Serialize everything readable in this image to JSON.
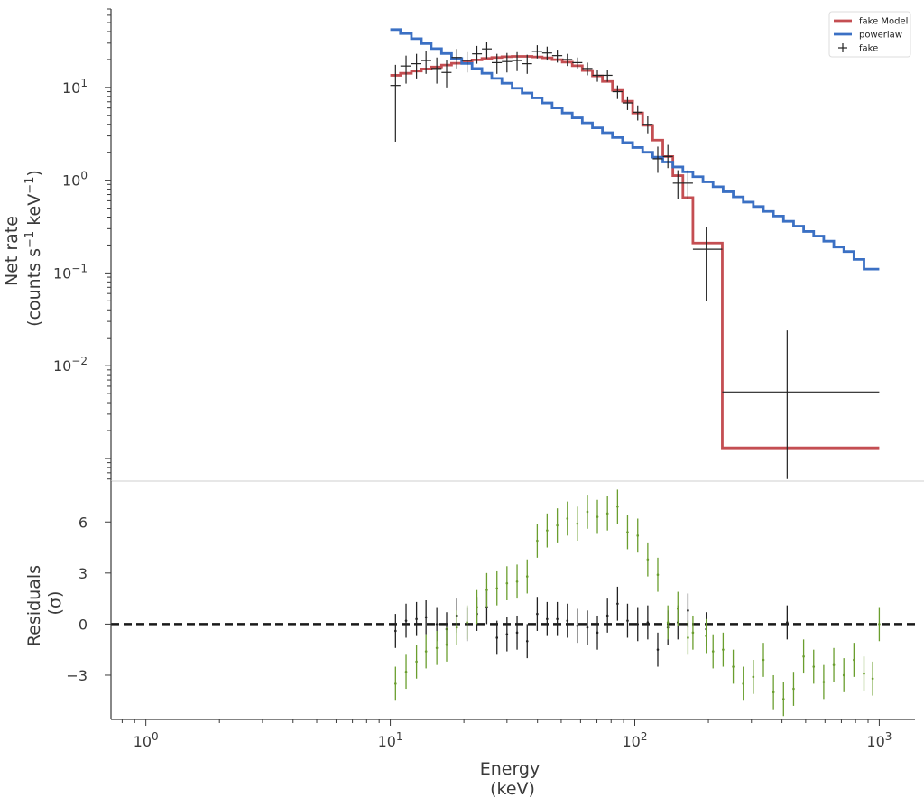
{
  "chart_data": [
    {
      "type": "step-line",
      "panel": "spectrum",
      "ylabel_line1": "Net rate",
      "ylabel_line2": "(counts s",
      "ylabel_sup1": "−1",
      "ylabel_mid": " keV",
      "ylabel_sup2": "−1",
      "ylabel_end": ")",
      "xscale": "log",
      "yscale": "log",
      "xlim": [
        0.72,
        1400
      ],
      "ylim": [
        0.00057,
        70
      ],
      "yticks": [
        {
          "value": 10,
          "base": "10",
          "exp": "1"
        },
        {
          "value": 1,
          "base": "10",
          "exp": "0"
        },
        {
          "value": 0.1,
          "base": "10",
          "exp": "−1"
        },
        {
          "value": 0.01,
          "base": "10",
          "exp": "−2"
        }
      ],
      "legend": {
        "position": "top-right",
        "entries": [
          {
            "label": "fake Model",
            "kind": "line",
            "color": "#c44e52"
          },
          {
            "label": "powerlaw",
            "kind": "line",
            "color": "#3b70c4"
          },
          {
            "label": "fake",
            "kind": "marker",
            "color": "#222222"
          }
        ]
      },
      "series": [
        {
          "name": "fake Model",
          "color": "#c44e52",
          "edges": [
            10.0,
            11.0,
            12.2,
            13.4,
            14.7,
            16.2,
            17.8,
            19.6,
            21.6,
            23.7,
            26.0,
            28.6,
            31.5,
            34.6,
            38.0,
            41.8,
            45.9,
            50.5,
            55.5,
            61.0,
            67.1,
            73.7,
            81.0,
            89.1,
            98.0,
            107.7,
            118.4,
            130.2,
            143.1,
            157.3,
            172.9,
            228.0,
            1000.0
          ],
          "values": [
            13.5,
            14.2,
            15.0,
            15.8,
            16.6,
            17.4,
            18.2,
            19.0,
            19.8,
            20.5,
            21.0,
            21.4,
            21.6,
            21.6,
            21.3,
            20.8,
            19.9,
            18.7,
            17.1,
            15.2,
            13.3,
            11.6,
            9.3,
            7.1,
            5.3,
            3.9,
            2.7,
            1.8,
            1.12,
            0.65,
            0.21,
            0.0013
          ]
        },
        {
          "name": "powerlaw",
          "color": "#3b70c4",
          "edges": [
            10.0,
            11.0,
            12.2,
            13.4,
            14.7,
            16.2,
            17.8,
            19.6,
            21.6,
            23.7,
            26.0,
            28.6,
            31.5,
            34.6,
            38.0,
            41.8,
            45.9,
            50.5,
            55.5,
            61.0,
            67.1,
            73.7,
            81.0,
            89.1,
            98.0,
            107.7,
            118.4,
            130.2,
            143.1,
            157.3,
            172.9,
            190.1,
            209.0,
            229.8,
            252.7,
            277.8,
            305.4,
            335.8,
            369.1,
            405.8,
            446.2,
            490.5,
            539.3,
            592.9,
            651.8,
            716.6,
            787.8,
            866.1,
            1000.0
          ],
          "values": [
            42.0,
            38.0,
            33.5,
            29.6,
            26.2,
            23.2,
            20.5,
            18.1,
            16.0,
            14.2,
            12.5,
            11.1,
            9.8,
            8.7,
            7.7,
            6.8,
            6.0,
            5.3,
            4.7,
            4.15,
            3.67,
            3.25,
            2.88,
            2.55,
            2.25,
            2.0,
            1.77,
            1.57,
            1.39,
            1.23,
            1.09,
            0.96,
            0.85,
            0.75,
            0.66,
            0.58,
            0.52,
            0.46,
            0.41,
            0.36,
            0.32,
            0.28,
            0.25,
            0.22,
            0.19,
            0.17,
            0.14,
            0.11
          ]
        }
      ],
      "data_points": {
        "name": "fake",
        "color": "#222222",
        "points": [
          {
            "x": 10.5,
            "xlo": 10.0,
            "xhi": 11.0,
            "y": 10.5,
            "ylo": 2.6,
            "yhi": 17.5
          },
          {
            "x": 11.6,
            "xlo": 11.0,
            "xhi": 12.2,
            "y": 17.0,
            "ylo": 11.0,
            "yhi": 22.0
          },
          {
            "x": 12.8,
            "xlo": 12.2,
            "xhi": 13.4,
            "y": 18.0,
            "ylo": 12.5,
            "yhi": 23.0
          },
          {
            "x": 14.0,
            "xlo": 13.4,
            "xhi": 14.7,
            "y": 19.5,
            "ylo": 14.0,
            "yhi": 24.5
          },
          {
            "x": 15.5,
            "xlo": 14.7,
            "xhi": 16.2,
            "y": 16.0,
            "ylo": 11.0,
            "yhi": 21.0
          },
          {
            "x": 17.0,
            "xlo": 16.2,
            "xhi": 17.8,
            "y": 14.5,
            "ylo": 10.0,
            "yhi": 19.5
          },
          {
            "x": 18.7,
            "xlo": 17.8,
            "xhi": 19.6,
            "y": 21.0,
            "ylo": 16.0,
            "yhi": 26.0
          },
          {
            "x": 20.6,
            "xlo": 19.6,
            "xhi": 21.6,
            "y": 19.5,
            "ylo": 14.5,
            "yhi": 24.0
          },
          {
            "x": 22.6,
            "xlo": 21.6,
            "xhi": 23.7,
            "y": 23.0,
            "ylo": 18.0,
            "yhi": 28.0
          },
          {
            "x": 24.8,
            "xlo": 23.7,
            "xhi": 26.0,
            "y": 26.0,
            "ylo": 20.5,
            "yhi": 31.0
          },
          {
            "x": 27.3,
            "xlo": 26.0,
            "xhi": 28.6,
            "y": 18.5,
            "ylo": 14.0,
            "yhi": 23.0
          },
          {
            "x": 30.0,
            "xlo": 28.6,
            "xhi": 31.5,
            "y": 19.0,
            "ylo": 14.5,
            "yhi": 23.5
          },
          {
            "x": 33.0,
            "xlo": 31.5,
            "xhi": 34.6,
            "y": 19.5,
            "ylo": 15.0,
            "yhi": 24.0
          },
          {
            "x": 36.3,
            "xlo": 34.6,
            "xhi": 38.0,
            "y": 18.0,
            "ylo": 14.0,
            "yhi": 22.5
          },
          {
            "x": 39.9,
            "xlo": 38.0,
            "xhi": 41.8,
            "y": 24.5,
            "ylo": 20.5,
            "yhi": 28.5
          },
          {
            "x": 43.8,
            "xlo": 41.8,
            "xhi": 45.9,
            "y": 23.5,
            "ylo": 19.5,
            "yhi": 27.5
          },
          {
            "x": 48.2,
            "xlo": 45.9,
            "xhi": 50.5,
            "y": 22.0,
            "ylo": 18.5,
            "yhi": 25.5
          },
          {
            "x": 53.0,
            "xlo": 50.5,
            "xhi": 55.5,
            "y": 20.0,
            "ylo": 17.0,
            "yhi": 23.0
          },
          {
            "x": 58.2,
            "xlo": 55.5,
            "xhi": 61.0,
            "y": 18.5,
            "ylo": 16.0,
            "yhi": 21.0
          },
          {
            "x": 64.0,
            "xlo": 61.0,
            "xhi": 67.1,
            "y": 16.0,
            "ylo": 13.5,
            "yhi": 18.5
          },
          {
            "x": 70.3,
            "xlo": 67.1,
            "xhi": 73.7,
            "y": 13.5,
            "ylo": 11.5,
            "yhi": 15.5
          },
          {
            "x": 77.3,
            "xlo": 73.7,
            "xhi": 81.0,
            "y": 13.5,
            "ylo": 11.5,
            "yhi": 15.5
          },
          {
            "x": 85.0,
            "xlo": 81.0,
            "xhi": 89.1,
            "y": 9.0,
            "ylo": 7.5,
            "yhi": 10.5
          },
          {
            "x": 93.4,
            "xlo": 89.1,
            "xhi": 98.0,
            "y": 6.8,
            "ylo": 5.7,
            "yhi": 8.0
          },
          {
            "x": 102.8,
            "xlo": 98.0,
            "xhi": 107.7,
            "y": 5.4,
            "ylo": 4.4,
            "yhi": 6.4
          },
          {
            "x": 113.0,
            "xlo": 107.7,
            "xhi": 118.4,
            "y": 4.0,
            "ylo": 3.2,
            "yhi": 4.9
          },
          {
            "x": 124.2,
            "xlo": 118.4,
            "xhi": 130.2,
            "y": 1.7,
            "ylo": 1.2,
            "yhi": 2.3
          },
          {
            "x": 136.6,
            "xlo": 130.2,
            "xhi": 143.1,
            "y": 1.8,
            "ylo": 1.35,
            "yhi": 2.4
          },
          {
            "x": 150.1,
            "xlo": 143.1,
            "xhi": 157.3,
            "y": 0.93,
            "ylo": 0.62,
            "yhi": 1.28
          },
          {
            "x": 165.0,
            "xlo": 157.3,
            "xhi": 172.9,
            "y": 0.93,
            "ylo": 0.62,
            "yhi": 1.28
          },
          {
            "x": 196.0,
            "xlo": 172.9,
            "xhi": 228.0,
            "y": 0.18,
            "ylo": 0.05,
            "yhi": 0.31
          },
          {
            "x": 420.0,
            "xlo": 228.0,
            "xhi": 1000.0,
            "y": 0.0052,
            "ylo": 0.0006,
            "yhi": 0.024
          }
        ]
      }
    },
    {
      "type": "scatter-errorbar",
      "panel": "residuals",
      "ylabel_line1": "Residuals",
      "ylabel_line2": "(σ)",
      "xlabel_line1": "Energy",
      "xlabel_line2": "(keV)",
      "xscale": "log",
      "xlim": [
        0.72,
        1400
      ],
      "ylim": [
        -5.6,
        8.4
      ],
      "yticks": [
        {
          "value": 6,
          "label": "6"
        },
        {
          "value": 3,
          "label": "3"
        },
        {
          "value": 0,
          "label": "0"
        },
        {
          "value": -3,
          "label": "−3"
        }
      ],
      "xticks": [
        {
          "value": 1,
          "base": "10",
          "exp": "0"
        },
        {
          "value": 10,
          "base": "10",
          "exp": "1"
        },
        {
          "value": 100,
          "base": "10",
          "exp": "2"
        },
        {
          "value": 1000,
          "base": "10",
          "exp": "3"
        }
      ],
      "zero_line": 0,
      "series": [
        {
          "name": "fake",
          "color": "#222222",
          "points": [
            {
              "x": 10.5,
              "y": -0.4
            },
            {
              "x": 11.6,
              "y": 0.2
            },
            {
              "x": 12.8,
              "y": 0.3
            },
            {
              "x": 14.0,
              "y": 0.4
            },
            {
              "x": 15.5,
              "y": 0.0
            },
            {
              "x": 17.0,
              "y": -0.3
            },
            {
              "x": 18.7,
              "y": 0.5
            },
            {
              "x": 20.6,
              "y": 0.0
            },
            {
              "x": 22.6,
              "y": 0.6
            },
            {
              "x": 24.8,
              "y": 1.0
            },
            {
              "x": 27.3,
              "y": -0.8
            },
            {
              "x": 30.0,
              "y": -0.6
            },
            {
              "x": 33.0,
              "y": -0.5
            },
            {
              "x": 36.3,
              "y": -1.0
            },
            {
              "x": 39.9,
              "y": 0.6
            },
            {
              "x": 43.8,
              "y": 0.3
            },
            {
              "x": 48.2,
              "y": 0.3
            },
            {
              "x": 53.0,
              "y": 0.2
            },
            {
              "x": 58.2,
              "y": -0.1
            },
            {
              "x": 64.0,
              "y": -0.2
            },
            {
              "x": 70.3,
              "y": -0.5
            },
            {
              "x": 77.3,
              "y": 0.5
            },
            {
              "x": 85.0,
              "y": 1.2
            },
            {
              "x": 93.4,
              "y": 0.2
            },
            {
              "x": 102.8,
              "y": 0.0
            },
            {
              "x": 113.0,
              "y": 0.1
            },
            {
              "x": 124.2,
              "y": -1.5
            },
            {
              "x": 136.6,
              "y": -0.2
            },
            {
              "x": 150.1,
              "y": 0.1
            },
            {
              "x": 165.0,
              "y": 0.8
            },
            {
              "x": 196.0,
              "y": -0.3
            },
            {
              "x": 420.0,
              "y": 0.1
            }
          ]
        },
        {
          "name": "powerlaw",
          "color": "#6a9e2e",
          "points": [
            {
              "x": 10.5,
              "y": -3.5
            },
            {
              "x": 11.6,
              "y": -2.8
            },
            {
              "x": 12.8,
              "y": -2.2
            },
            {
              "x": 14.0,
              "y": -1.6
            },
            {
              "x": 15.5,
              "y": -1.4
            },
            {
              "x": 17.0,
              "y": -1.2
            },
            {
              "x": 18.7,
              "y": -0.2
            },
            {
              "x": 20.6,
              "y": 0.1
            },
            {
              "x": 22.6,
              "y": 1.0
            },
            {
              "x": 24.8,
              "y": 2.0
            },
            {
              "x": 27.3,
              "y": 2.1
            },
            {
              "x": 30.0,
              "y": 2.4
            },
            {
              "x": 33.0,
              "y": 2.5
            },
            {
              "x": 36.3,
              "y": 2.8
            },
            {
              "x": 39.9,
              "y": 4.9
            },
            {
              "x": 43.8,
              "y": 5.5
            },
            {
              "x": 48.2,
              "y": 5.8
            },
            {
              "x": 53.0,
              "y": 6.2
            },
            {
              "x": 58.2,
              "y": 5.9
            },
            {
              "x": 64.0,
              "y": 6.6
            },
            {
              "x": 70.3,
              "y": 6.3
            },
            {
              "x": 77.3,
              "y": 6.5
            },
            {
              "x": 85.0,
              "y": 6.9
            },
            {
              "x": 93.4,
              "y": 5.4
            },
            {
              "x": 102.8,
              "y": 5.2
            },
            {
              "x": 113.0,
              "y": 3.8
            },
            {
              "x": 124.2,
              "y": 2.9
            },
            {
              "x": 136.6,
              "y": 0.1
            },
            {
              "x": 150.1,
              "y": 0.9
            },
            {
              "x": 165.0,
              "y": -0.8
            },
            {
              "x": 172.9,
              "y": -0.5
            },
            {
              "x": 196.0,
              "y": -0.7
            },
            {
              "x": 209.0,
              "y": -1.6
            },
            {
              "x": 229.8,
              "y": -1.5
            },
            {
              "x": 252.7,
              "y": -2.5
            },
            {
              "x": 277.8,
              "y": -3.5
            },
            {
              "x": 305.4,
              "y": -3.1
            },
            {
              "x": 335.8,
              "y": -2.1
            },
            {
              "x": 369.1,
              "y": -4.0
            },
            {
              "x": 405.8,
              "y": -4.4
            },
            {
              "x": 446.2,
              "y": -3.8
            },
            {
              "x": 490.5,
              "y": -1.9
            },
            {
              "x": 539.3,
              "y": -2.5
            },
            {
              "x": 592.9,
              "y": -3.4
            },
            {
              "x": 651.8,
              "y": -2.4
            },
            {
              "x": 716.6,
              "y": -3.0
            },
            {
              "x": 787.8,
              "y": -2.1
            },
            {
              "x": 866.1,
              "y": -2.9
            },
            {
              "x": 940.0,
              "y": -3.2
            },
            {
              "x": 1000.0,
              "y": 0.0
            }
          ]
        }
      ]
    }
  ]
}
